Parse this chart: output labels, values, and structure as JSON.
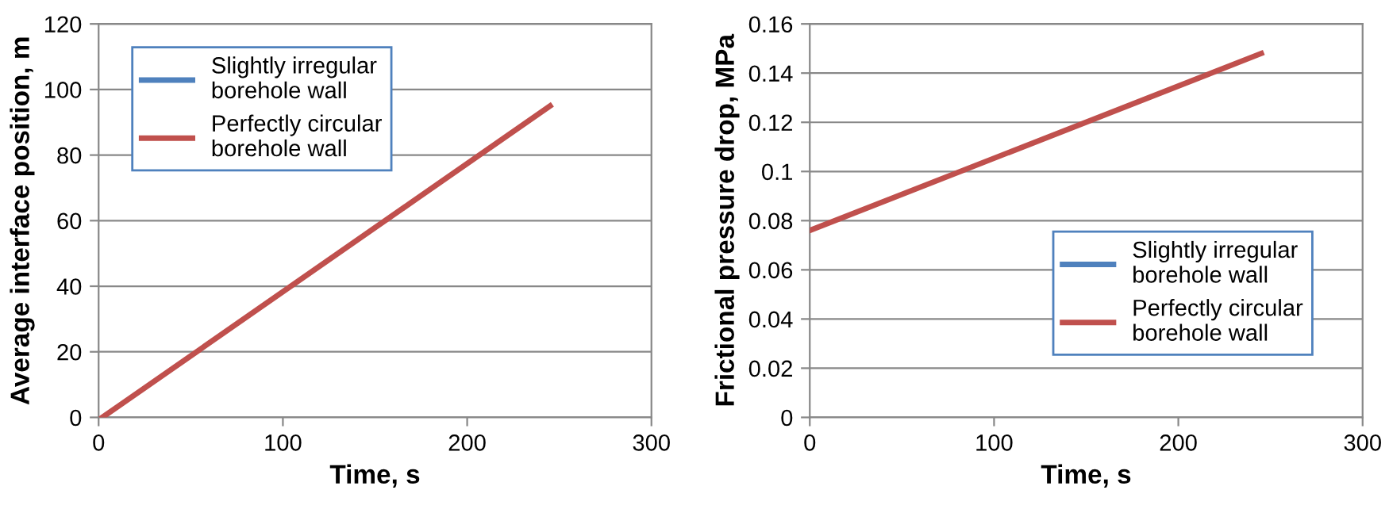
{
  "chart_data": [
    {
      "type": "line",
      "xlabel": "Time, s",
      "ylabel": "Average interface position, m",
      "x": [
        2,
        245
      ],
      "series": [
        {
          "name": "Slightly irregular\nborehole wall",
          "color": "#4f81bd",
          "values": [
            null,
            null
          ]
        },
        {
          "name": "Perfectly circular\nborehole wall",
          "color": "#c0504d",
          "values": [
            0,
            95
          ]
        }
      ],
      "xlim": [
        0,
        300
      ],
      "xticks": [
        0,
        100,
        200,
        300
      ],
      "ylim": [
        0,
        120
      ],
      "yticks": [
        0,
        20,
        40,
        60,
        80,
        100,
        120
      ],
      "grid": "y",
      "legend": "top left",
      "marker": "none",
      "line_style": "solid"
    },
    {
      "type": "line",
      "xlabel": "Time, s",
      "ylabel": "Frictional pressure drop, MPa",
      "x": [
        0,
        245
      ],
      "series": [
        {
          "name": "Slightly irregular\nborehole wall",
          "color": "#4f81bd",
          "values": [
            null,
            null
          ]
        },
        {
          "name": "Perfectly circular\nborehole wall",
          "color": "#c0504d",
          "values": [
            0.076,
            0.148
          ]
        }
      ],
      "xlim": [
        0,
        300
      ],
      "xticks": [
        0,
        100,
        200,
        300
      ],
      "ylim": [
        0,
        0.16
      ],
      "yticks": [
        0,
        0.02,
        0.04,
        0.06,
        0.08,
        0.1,
        0.12,
        0.14,
        0.16
      ],
      "grid": "y",
      "legend": "bottom right",
      "marker": "none",
      "line_style": "solid"
    }
  ]
}
